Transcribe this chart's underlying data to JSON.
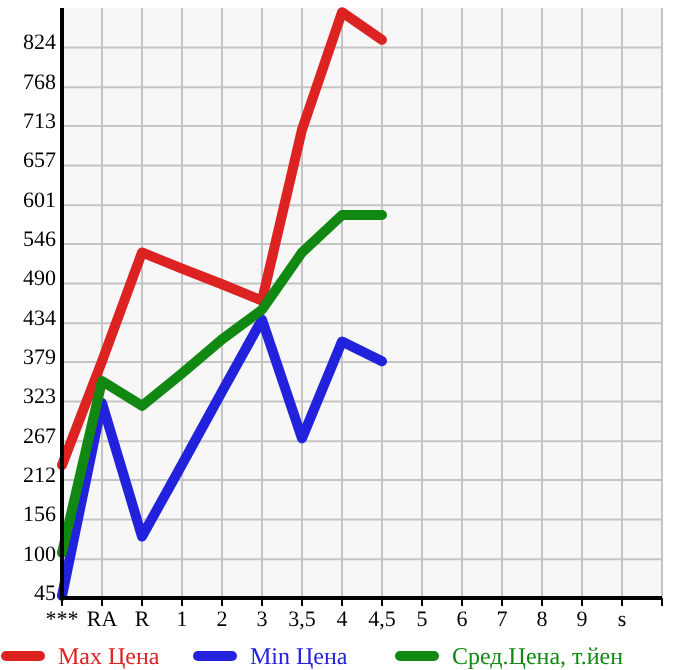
{
  "chart_data": {
    "type": "line",
    "categories": [
      "***",
      "RA",
      "R",
      "1",
      "2",
      "3",
      "3,5",
      "4",
      "4,5",
      "5",
      "6",
      "7",
      "8",
      "9",
      "s"
    ],
    "ylim": [
      45,
      880
    ],
    "yticks": [
      45,
      100,
      156,
      212,
      267,
      323,
      379,
      434,
      490,
      546,
      601,
      657,
      713,
      768,
      824
    ],
    "grid": true,
    "legend": "bottom",
    "marker": "none",
    "line_style": "solid",
    "series": [
      {
        "name": "Max Цена",
        "color": "#dd2222",
        "values": [
          233,
          380,
          534,
          511,
          489,
          466,
          708,
          874,
          835,
          null,
          null,
          null,
          null,
          null,
          null
        ]
      },
      {
        "name": "Min Цена",
        "color": "#2222dd",
        "values": [
          48,
          321,
          132,
          234,
          337,
          439,
          271,
          408,
          380,
          null,
          null,
          null,
          null,
          null,
          null
        ]
      },
      {
        "name": "Сред.Цена, т.йен",
        "color": "#118811",
        "values": [
          109,
          352,
          317,
          363,
          411,
          453,
          534,
          587,
          587,
          null,
          null,
          null,
          null,
          null,
          null
        ]
      }
    ]
  }
}
